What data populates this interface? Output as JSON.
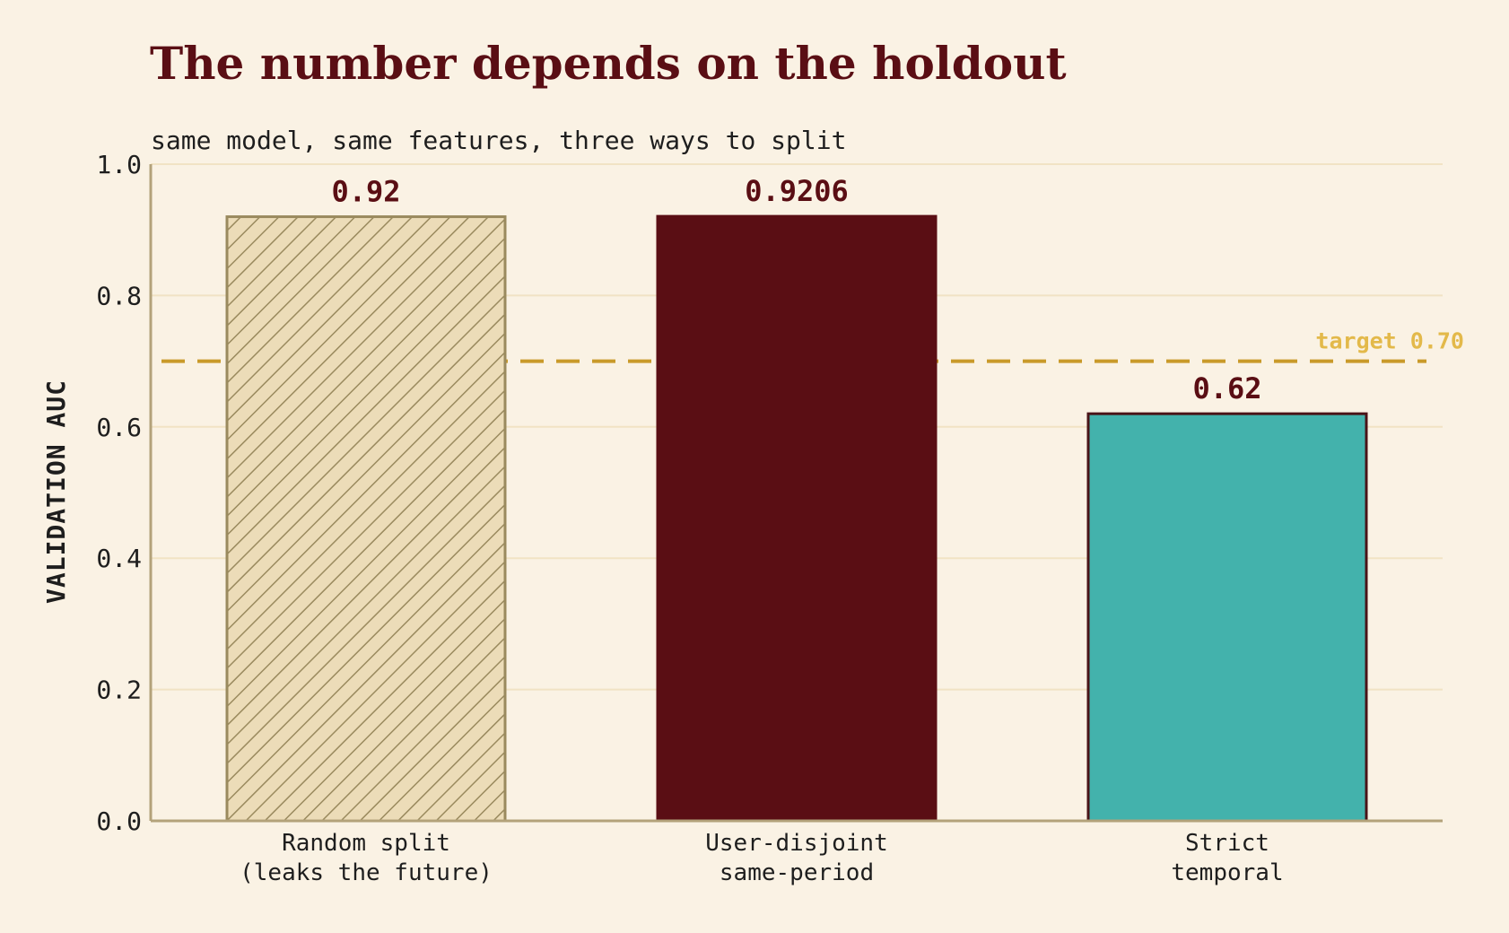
{
  "chart_data": {
    "type": "bar",
    "title": "The number depends on the holdout",
    "subtitle": "same model, same features, three ways to split",
    "ylabel": "VALIDATION  AUC",
    "xlabel": "",
    "ylim": [
      0.0,
      1.0
    ],
    "yticks": [
      "0.0",
      "0.2",
      "0.4",
      "0.6",
      "0.8",
      "1.0"
    ],
    "grid": "horizontal",
    "categories": [
      [
        "Random split",
        "(leaks the future)"
      ],
      [
        "User-disjoint",
        "same-period"
      ],
      [
        "Strict",
        "temporal"
      ]
    ],
    "values": [
      0.92,
      0.9206,
      0.62
    ],
    "value_labels": [
      "0.92",
      "0.9206",
      "0.62"
    ],
    "bar_styles": [
      {
        "fill": "#ecdcb8",
        "stroke": "#9a8a5e",
        "hatch": true
      },
      {
        "fill": "#5a0e14",
        "stroke": "#5a0e14",
        "hatch": false
      },
      {
        "fill": "#43b2ac",
        "stroke": "#4a1418",
        "hatch": false
      }
    ],
    "reference_line": {
      "value": 0.7,
      "label": "target 0.70",
      "color": "#c99a2a",
      "label_color": "#e3b94a",
      "style": "dashed"
    }
  },
  "colors": {
    "background": "#faf2e4",
    "title": "#5a0e14",
    "axis": "#b3a27a",
    "grid": "#f1e3c4",
    "value_label": "#5a0e14"
  }
}
